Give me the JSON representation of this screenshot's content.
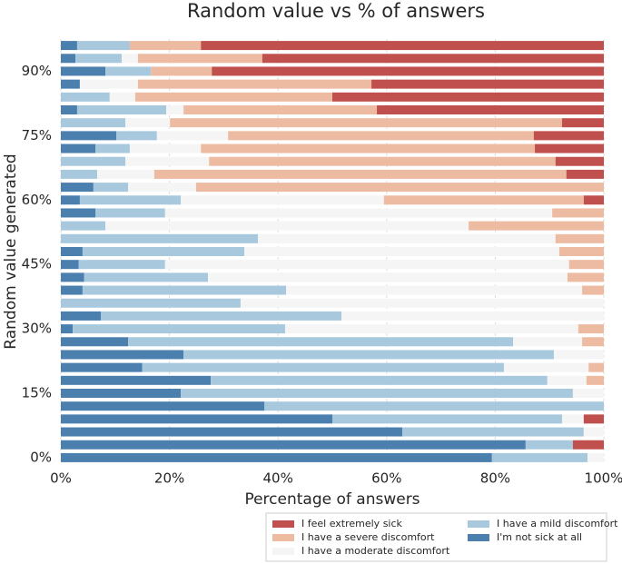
{
  "chart_data": {
    "type": "stacked-barh",
    "title": "Random value vs % of answers",
    "xlabel": "Percentage of answers",
    "ylabel": "Random value generated",
    "categories": [
      "0%",
      null,
      null,
      null,
      null,
      "15%",
      null,
      null,
      null,
      null,
      "30%",
      null,
      null,
      null,
      null,
      "45%",
      null,
      null,
      null,
      null,
      "60%",
      null,
      null,
      null,
      null,
      "75%",
      null,
      null,
      null,
      null,
      "90%",
      null,
      null
    ],
    "xlim": [
      0,
      100
    ],
    "xticks": [
      {
        "value": 0,
        "label": "0%"
      },
      {
        "value": 20,
        "label": "20%"
      },
      {
        "value": 40,
        "label": "40%"
      },
      {
        "value": 60,
        "label": "60%"
      },
      {
        "value": 80,
        "label": "80%"
      },
      {
        "value": 100,
        "label": "100%"
      }
    ],
    "grid": true,
    "legend": "bottom-right",
    "series": [
      {
        "name": "I'm not sick at all",
        "color": "#4a7fae",
        "values": [
          79.4,
          85.6,
          62.9,
          50,
          37.5,
          22.1,
          27.6,
          15,
          22.6,
          12.4,
          2.2,
          7.4,
          0,
          4,
          4.3,
          3.3,
          4,
          0,
          0,
          6.4,
          3.5,
          6,
          0,
          0,
          6.4,
          10.2,
          0,
          3,
          0,
          3.5,
          8.2,
          2.7,
          3
        ]
      },
      {
        "name": "I have a mild discomfort",
        "color": "#a8c9dd",
        "values": [
          17.6,
          8.7,
          33.4,
          42.3,
          62.5,
          72.2,
          62,
          66.6,
          68.2,
          70.9,
          39.1,
          44.3,
          33.1,
          37.5,
          22.8,
          15.9,
          29.8,
          36.3,
          8.2,
          12.8,
          18.6,
          6.4,
          6.7,
          11.9,
          6.3,
          7.5,
          11.9,
          16.4,
          9,
          0,
          8.4,
          8.5,
          9.7
        ]
      },
      {
        "name": "I have a moderate discomfort",
        "color": "#f5f5f5",
        "values": [
          3,
          0,
          3.7,
          4,
          0,
          5.7,
          7.2,
          15.6,
          9.2,
          12.7,
          54,
          48.3,
          66.9,
          54.5,
          66.2,
          74.4,
          58,
          54.8,
          66.9,
          71.3,
          37.4,
          12.5,
          10.5,
          15.4,
          13.1,
          13.1,
          8.2,
          3.2,
          4.7,
          10.7,
          0,
          3,
          0
        ]
      },
      {
        "name": "I have a severe discomfort",
        "color": "#edbaa2",
        "values": [
          0,
          0,
          0,
          0,
          0,
          0,
          3.2,
          2.8,
          0,
          4,
          4.7,
          0,
          0,
          4,
          6.7,
          6.4,
          8.2,
          8.9,
          24.9,
          9.5,
          36.8,
          75.1,
          75.9,
          63.8,
          61.5,
          56.3,
          72.2,
          35.6,
          36.3,
          43,
          11.2,
          22.9,
          13.1
        ]
      },
      {
        "name": "I feel extremely sick",
        "color": "#c0504d",
        "values": [
          0,
          5.7,
          0,
          3.7,
          0,
          0,
          0,
          0,
          0,
          0,
          0,
          0,
          0,
          0,
          0,
          0,
          0,
          0,
          0,
          0,
          3.7,
          0,
          6.9,
          8.9,
          12.7,
          12.9,
          7.7,
          41.8,
          50,
          42.8,
          72.2,
          62.9,
          74.2
        ]
      }
    ]
  }
}
